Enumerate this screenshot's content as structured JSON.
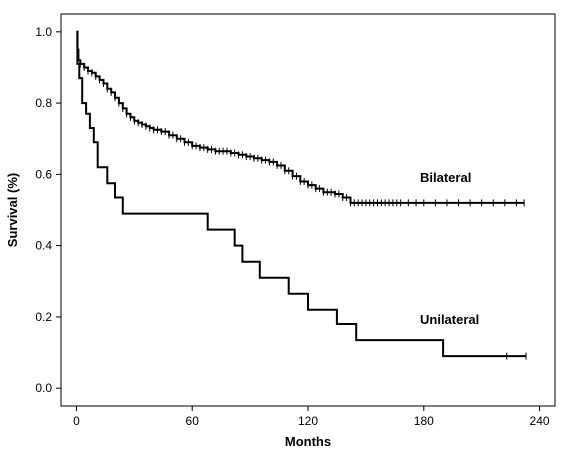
{
  "chart_data": {
    "type": "line",
    "title": "",
    "xlabel": "Months",
    "ylabel": "Survival (%)",
    "xlim": [
      -8,
      248
    ],
    "ylim": [
      -0.05,
      1.05
    ],
    "xticks": [
      0,
      60,
      120,
      180,
      240
    ],
    "xtick_labels": [
      "0",
      "60",
      "120",
      "180",
      "240"
    ],
    "yticks": [
      0.0,
      0.2,
      0.4,
      0.6,
      0.8,
      1.0
    ],
    "ytick_labels": [
      "0.0",
      "0.2",
      "0.4",
      "0.6",
      "0.8",
      "1.0"
    ],
    "grid": false,
    "legend": "none",
    "colors": {
      "line": "#000000",
      "frame": "#000000",
      "background": "#ffffff"
    },
    "series": [
      {
        "name": "Bilateral",
        "step": true,
        "points": [
          [
            0,
            1.0
          ],
          [
            0.5,
            0.95
          ],
          [
            1,
            0.92
          ],
          [
            2,
            0.91
          ],
          [
            4,
            0.9
          ],
          [
            6,
            0.89
          ],
          [
            8,
            0.885
          ],
          [
            10,
            0.875
          ],
          [
            12,
            0.865
          ],
          [
            14,
            0.855
          ],
          [
            16,
            0.84
          ],
          [
            18,
            0.83
          ],
          [
            20,
            0.815
          ],
          [
            22,
            0.8
          ],
          [
            24,
            0.785
          ],
          [
            26,
            0.77
          ],
          [
            28,
            0.76
          ],
          [
            30,
            0.75
          ],
          [
            32,
            0.745
          ],
          [
            34,
            0.74
          ],
          [
            36,
            0.735
          ],
          [
            38,
            0.73
          ],
          [
            40,
            0.725
          ],
          [
            44,
            0.72
          ],
          [
            48,
            0.71
          ],
          [
            52,
            0.7
          ],
          [
            56,
            0.69
          ],
          [
            60,
            0.68
          ],
          [
            64,
            0.675
          ],
          [
            68,
            0.67
          ],
          [
            72,
            0.665
          ],
          [
            76,
            0.665
          ],
          [
            80,
            0.66
          ],
          [
            84,
            0.655
          ],
          [
            88,
            0.65
          ],
          [
            92,
            0.645
          ],
          [
            96,
            0.64
          ],
          [
            100,
            0.635
          ],
          [
            104,
            0.625
          ],
          [
            108,
            0.61
          ],
          [
            112,
            0.595
          ],
          [
            116,
            0.58
          ],
          [
            120,
            0.57
          ],
          [
            124,
            0.56
          ],
          [
            128,
            0.55
          ],
          [
            134,
            0.545
          ],
          [
            138,
            0.535
          ],
          [
            142,
            0.52
          ],
          [
            232,
            0.52
          ]
        ],
        "censor_x": [
          2,
          4,
          6,
          8,
          10,
          12,
          14,
          16,
          18,
          20,
          22,
          24,
          26,
          28,
          30,
          32,
          34,
          36,
          38,
          40,
          42,
          44,
          46,
          48,
          50,
          52,
          54,
          56,
          58,
          60,
          62,
          64,
          66,
          68,
          70,
          72,
          74,
          76,
          78,
          80,
          82,
          84,
          86,
          88,
          90,
          92,
          94,
          96,
          98,
          100,
          102,
          104,
          106,
          108,
          110,
          112,
          114,
          116,
          118,
          120,
          122,
          124,
          126,
          128,
          130,
          132,
          134,
          136,
          138,
          140,
          142,
          144,
          146,
          148,
          150,
          152,
          154,
          156,
          158,
          160,
          162,
          164,
          166,
          168,
          172,
          176,
          180,
          186,
          192,
          198,
          204,
          210,
          216,
          222,
          228,
          232
        ]
      },
      {
        "name": "Unilateral",
        "step": true,
        "points": [
          [
            0,
            1.0
          ],
          [
            0.5,
            0.91
          ],
          [
            1.5,
            0.87
          ],
          [
            3,
            0.8
          ],
          [
            5,
            0.77
          ],
          [
            7,
            0.73
          ],
          [
            9,
            0.69
          ],
          [
            11,
            0.62
          ],
          [
            16,
            0.575
          ],
          [
            20,
            0.535
          ],
          [
            24,
            0.49
          ],
          [
            68,
            0.445
          ],
          [
            82,
            0.4
          ],
          [
            86,
            0.355
          ],
          [
            95,
            0.31
          ],
          [
            110,
            0.265
          ],
          [
            120,
            0.22
          ],
          [
            135,
            0.18
          ],
          [
            145,
            0.135
          ],
          [
            190,
            0.09
          ],
          [
            233,
            0.09
          ]
        ],
        "censor_x": [
          223,
          233
        ]
      }
    ],
    "annotations": [
      {
        "text": "Bilateral",
        "x": 174,
        "y": 0.595,
        "series": "Bilateral"
      },
      {
        "text": "Unilateral",
        "x": 174,
        "y": 0.185,
        "series": "Unilateral"
      }
    ]
  }
}
